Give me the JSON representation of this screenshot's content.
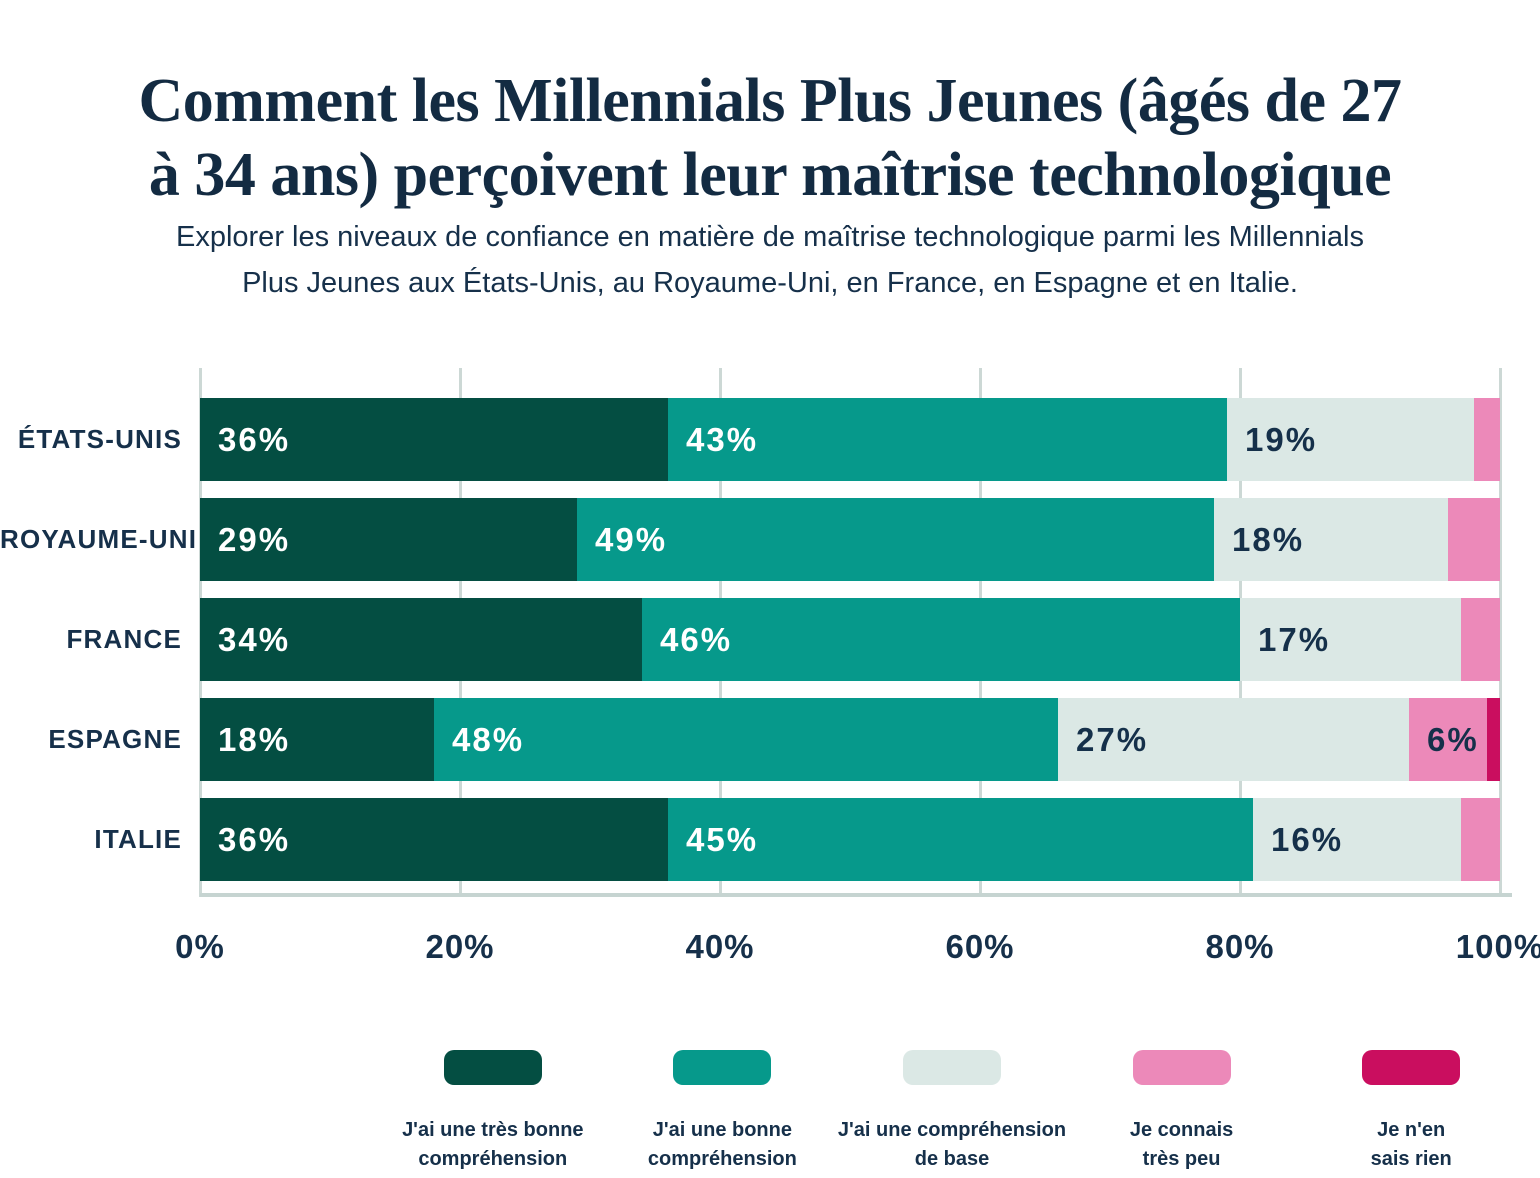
{
  "header": {
    "title_line1": "Comment les Millennials Plus Jeunes (âgés de 27",
    "title_line2": "à 34 ans) perçoivent leur maîtrise technologique",
    "subtitle_line1": "Explorer les niveaux de confiance en matière de maîtrise technologique parmi les Millennials",
    "subtitle_line2": "Plus Jeunes aux États-Unis, au Royaume-Uni, en France, en Espagne et en Italie."
  },
  "chart_data": {
    "type": "bar",
    "orientation": "horizontal",
    "stacked": true,
    "title": "Comment les Millennials Plus Jeunes (âgés de 27 à 34 ans) perçoivent leur maîtrise technologique",
    "subtitle": "Explorer les niveaux de confiance en matière de maîtrise technologique parmi les Millennials Plus Jeunes aux États-Unis, au Royaume-Uni, en France, en Espagne et en Italie.",
    "categories": [
      "ÉTATS-UNIS",
      "ROYAUME-UNI",
      "FRANCE",
      "ESPAGNE",
      "ITALIE"
    ],
    "series": [
      {
        "name": "J'ai une très bonne compréhension",
        "legend_lines": [
          "J'ai une très bonne",
          "compréhension"
        ],
        "color": "#044e42",
        "label_color": "#ffffff",
        "values": [
          36,
          29,
          34,
          18,
          36
        ]
      },
      {
        "name": "J'ai une bonne compréhension",
        "legend_lines": [
          "J'ai une bonne",
          "compréhension"
        ],
        "color": "#06998b",
        "label_color": "#ffffff",
        "values": [
          43,
          49,
          46,
          48,
          45
        ]
      },
      {
        "name": "J'ai une compréhension de base",
        "legend_lines": [
          "J'ai une compréhension",
          "de base"
        ],
        "color": "#dbe8e5",
        "label_color": "#15304a",
        "values": [
          19,
          18,
          17,
          27,
          16
        ]
      },
      {
        "name": "Je connais très peu",
        "legend_lines": [
          "Je connais",
          "très peu"
        ],
        "color": "#ec89b9",
        "label_color": "#15304a",
        "values": [
          2,
          4,
          3,
          6,
          3
        ]
      },
      {
        "name": "Je n'en sais rien",
        "legend_lines": [
          "Je n'en",
          "sais rien"
        ],
        "color": "#ca0e5f",
        "label_color": "#15304a",
        "values": [
          0,
          0,
          0,
          1,
          0
        ]
      }
    ],
    "x_ticks": [
      "0%",
      "20%",
      "40%",
      "60%",
      "80%",
      "100%"
    ],
    "xlim": [
      0,
      100
    ],
    "value_suffix": "%",
    "value_label_min": 6,
    "grid": true,
    "legend_position": "bottom"
  },
  "colors": {
    "background": "#ffffff",
    "text": "#16304a",
    "gridline": "#ccd8d5",
    "axis_line": "#c6d4d1"
  }
}
